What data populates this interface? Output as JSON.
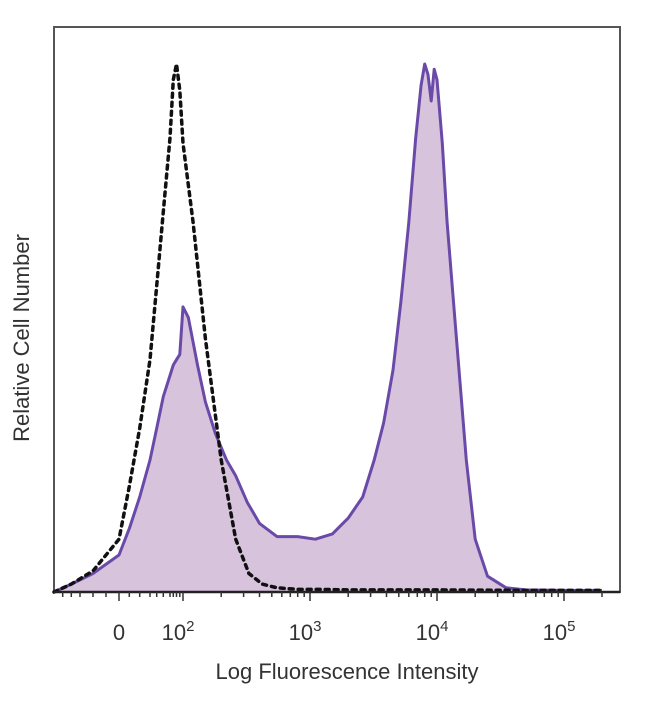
{
  "chart_data": {
    "type": "area",
    "title": "",
    "xlabel": "Log Fluorescence Intensity",
    "ylabel": "Relative Cell Number",
    "x_scale": "biexponential",
    "xlim": [
      -60,
      200000
    ],
    "ylim": [
      0,
      100
    ],
    "x_ticks": [
      {
        "value": 0,
        "label": "0",
        "exp": ""
      },
      {
        "value": 100,
        "label": "10",
        "exp": "2"
      },
      {
        "value": 1000,
        "label": "10",
        "exp": "3"
      },
      {
        "value": 10000,
        "label": "10",
        "exp": "4"
      },
      {
        "value": 100000,
        "label": "10",
        "exp": "5"
      }
    ],
    "grid": false,
    "legend": "none",
    "series": [
      {
        "style": "dotted-line",
        "color": "#111111",
        "x": [
          -60,
          -40,
          -20,
          0,
          10,
          20,
          30,
          40,
          50,
          60,
          70,
          80,
          90,
          100,
          120,
          150,
          200,
          260,
          330,
          420,
          550,
          800,
          1200,
          2000,
          5000,
          10000,
          50000,
          200000
        ],
        "y": [
          0,
          1.5,
          4,
          10,
          20,
          31,
          44,
          58,
          72,
          86,
          97,
          100,
          95,
          85,
          70,
          48,
          25,
          10,
          3.5,
          1.5,
          0.8,
          0.5,
          0.5,
          0.4,
          0.4,
          0.4,
          0.3,
          0.3
        ]
      },
      {
        "style": "filled-area",
        "color": "#6a4aa8",
        "fill": "#d8c3dc",
        "x": [
          -60,
          -40,
          -20,
          0,
          10,
          20,
          30,
          40,
          50,
          60,
          70,
          80,
          90,
          100,
          110,
          130,
          150,
          180,
          220,
          260,
          320,
          400,
          550,
          800,
          1100,
          1500,
          2000,
          2600,
          3200,
          3800,
          4500,
          5200,
          6000,
          6800,
          7500,
          8000,
          8500,
          9000,
          9500,
          10000,
          11000,
          12000,
          14000,
          17000,
          20000,
          25000,
          35000,
          50000,
          100000,
          200000
        ],
        "y": [
          0,
          1.5,
          3.5,
          7,
          12,
          18,
          25,
          31,
          37,
          41,
          43,
          44,
          45,
          54,
          52,
          43,
          36,
          30,
          25,
          22,
          17,
          13,
          10.5,
          10.5,
          10,
          11,
          14,
          18,
          25,
          32,
          42,
          55,
          70,
          86,
          96,
          100,
          98,
          93,
          99,
          97,
          85,
          70,
          50,
          25,
          10,
          3,
          0.8,
          0.4,
          0.3,
          0.3
        ]
      }
    ]
  }
}
